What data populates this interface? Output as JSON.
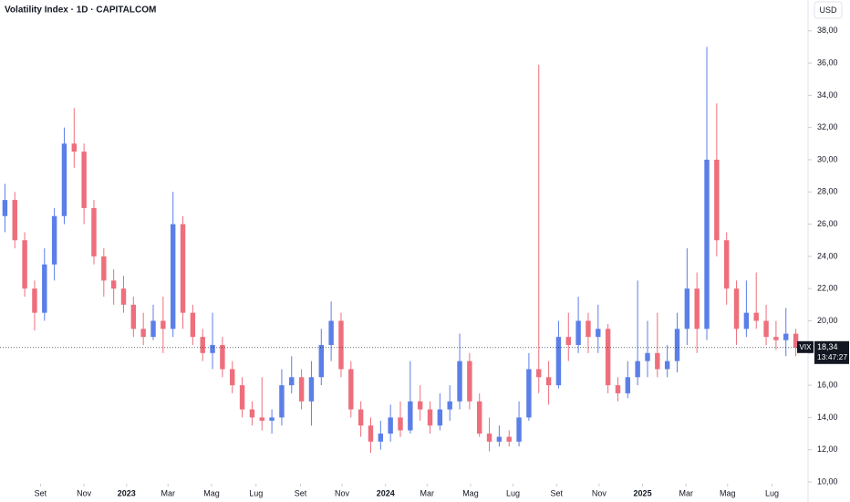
{
  "chart_data": {
    "type": "candlestick",
    "title": "Volatility Index · 1D · CAPITALCOM",
    "currency": "USD",
    "symbol": "VIX",
    "last_price": {
      "value": 18.34,
      "label": "18,34"
    },
    "countdown": "13:47:27",
    "up_color": "#5b7fe8",
    "down_color": "#ee6e7c",
    "xlim": [
      0,
      81
    ],
    "xticks": [
      {
        "value": 4.1,
        "label": "Set"
      },
      {
        "value": 8.5,
        "label": "Nov"
      },
      {
        "value": 12.8,
        "label": "2023"
      },
      {
        "value": 17.0,
        "label": "Mar"
      },
      {
        "value": 21.4,
        "label": "Mag"
      },
      {
        "value": 25.9,
        "label": "Lug"
      },
      {
        "value": 30.4,
        "label": "Set"
      },
      {
        "value": 34.6,
        "label": "Nov"
      },
      {
        "value": 39.0,
        "label": "2024"
      },
      {
        "value": 43.2,
        "label": "Mar"
      },
      {
        "value": 47.6,
        "label": "Mag"
      },
      {
        "value": 51.9,
        "label": "Lug"
      },
      {
        "value": 56.3,
        "label": "Set"
      },
      {
        "value": 60.6,
        "label": "Nov"
      },
      {
        "value": 65.0,
        "label": "2025"
      },
      {
        "value": 69.4,
        "label": "Mar"
      },
      {
        "value": 73.6,
        "label": "Mag"
      },
      {
        "value": 78.1,
        "label": "Lug"
      }
    ],
    "ylim": [
      10,
      39.8
    ],
    "yticks": [
      {
        "value": 10,
        "label": "10,00"
      },
      {
        "value": 12,
        "label": "12,00"
      },
      {
        "value": 14,
        "label": "14,00"
      },
      {
        "value": 16,
        "label": "16,00"
      },
      {
        "value": 18,
        "label": "18,00"
      },
      {
        "value": 20,
        "label": "20,00"
      },
      {
        "value": 22,
        "label": "22,00"
      },
      {
        "value": 24,
        "label": "24,00"
      },
      {
        "value": 26,
        "label": "26,00"
      },
      {
        "value": 28,
        "label": "28,00"
      },
      {
        "value": 30,
        "label": "30,00"
      },
      {
        "value": 32,
        "label": "32,00"
      },
      {
        "value": 34,
        "label": "34,00"
      },
      {
        "value": 36,
        "label": "36,00"
      },
      {
        "value": 38,
        "label": "38,00"
      }
    ],
    "open": [
      26.5,
      27.5,
      25,
      22,
      20.5,
      23.5,
      26.5,
      31,
      30.5,
      27,
      24,
      22.5,
      22,
      21,
      19.5,
      19,
      20,
      19.5,
      26,
      20.5,
      19,
      18,
      18.5,
      17,
      16,
      14.5,
      14,
      13.8,
      14,
      16,
      16.5,
      15,
      16.5,
      18.5,
      20,
      17,
      14.5,
      13.5,
      12.5,
      13,
      14,
      13.2,
      15,
      14.5,
      13.5,
      14.5,
      15,
      17.5,
      15,
      13,
      12.5,
      12.8,
      12.5,
      14,
      17,
      16.5,
      16,
      19,
      18.5,
      20,
      19,
      19.5,
      16,
      15.5,
      16.5,
      17.5,
      18,
      17,
      17.5,
      19.5,
      22,
      19.5,
      30,
      25,
      22,
      19.5,
      20.5,
      20,
      19,
      18.8,
      19.2
    ],
    "high": [
      28.5,
      28,
      25.5,
      22.5,
      24.5,
      27,
      32,
      33.2,
      31,
      27.5,
      24.5,
      23.2,
      22.8,
      21.5,
      20.5,
      21,
      21.5,
      28,
      26.5,
      21,
      19.5,
      20.5,
      19,
      17.5,
      16.5,
      15,
      16.5,
      14.5,
      17,
      17.8,
      17,
      17.5,
      19.5,
      21.2,
      20.5,
      17.5,
      15,
      14,
      13.8,
      14.8,
      15,
      17.5,
      16,
      15,
      15.5,
      16,
      19.2,
      18,
      15.5,
      14,
      13.5,
      13.2,
      15,
      18,
      35.9,
      17.5,
      20,
      20.5,
      21.5,
      20.5,
      21,
      19.8,
      16.5,
      17.5,
      22.5,
      20,
      20.5,
      18.5,
      20.5,
      24.5,
      23,
      37,
      33.5,
      25.5,
      22.5,
      22.5,
      23,
      21,
      20,
      20.8,
      19.5
    ],
    "low": [
      25.5,
      24.5,
      21.5,
      19.4,
      20,
      22.5,
      26,
      29.5,
      26,
      23.5,
      21.5,
      21,
      20.5,
      19,
      18.5,
      18.8,
      18,
      19,
      19.5,
      18.5,
      17.5,
      17,
      16.5,
      15.5,
      14,
      13.5,
      13.2,
      13,
      13.5,
      15.5,
      14.5,
      13.5,
      16,
      17.5,
      16.5,
      14,
      12.8,
      11.8,
      12,
      12.5,
      12.8,
      13,
      13.8,
      13,
      13.2,
      13.8,
      14.5,
      14.5,
      12.8,
      11.9,
      12.2,
      12.2,
      12.2,
      13.8,
      15.5,
      14.8,
      15.8,
      17.5,
      18,
      18,
      18,
      15.5,
      15,
      15.2,
      16,
      16.5,
      16.5,
      16.5,
      16.8,
      18.5,
      18,
      18.8,
      24,
      21,
      18.5,
      19,
      19.5,
      18.5,
      18.2,
      17.8,
      17.8
    ],
    "close": [
      27.5,
      25,
      22,
      20.5,
      23.5,
      26.5,
      31,
      30.5,
      27,
      24,
      22.5,
      22,
      21,
      19.5,
      19,
      20,
      19.5,
      26,
      20.5,
      19,
      18,
      18.5,
      17,
      16,
      14.5,
      14,
      13.8,
      14,
      16,
      16.5,
      15,
      16.5,
      18.5,
      20,
      17,
      14.5,
      13.5,
      12.5,
      13,
      14,
      13.2,
      15,
      14.5,
      13.5,
      14.5,
      15,
      17.5,
      15,
      13,
      12.5,
      12.8,
      12.5,
      14,
      17,
      16.5,
      16,
      19,
      18.5,
      20,
      19,
      19.5,
      16,
      15.5,
      16.5,
      17.5,
      18,
      17,
      17.5,
      19.5,
      22,
      19.5,
      30,
      25,
      22,
      19.5,
      20.5,
      20,
      19,
      18.8,
      19.2,
      18.34
    ]
  }
}
